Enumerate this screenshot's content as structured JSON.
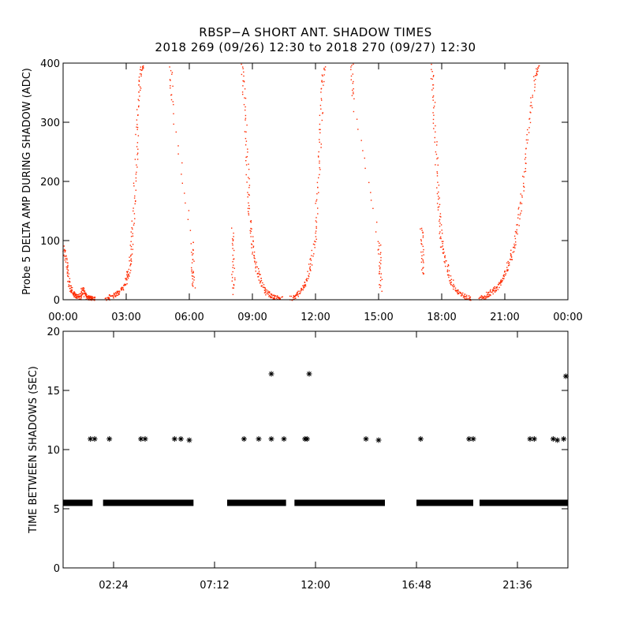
{
  "header": {
    "title": "RBSP−A SHORT ANT. SHADOW TIMES",
    "subtitle": "2018 269 (09/26) 12:30 to 2018 270 (09/27) 12:30"
  },
  "chart_data": [
    {
      "type": "scatter",
      "ylabel": "Probe 5 DELTA AMP DURING SHADOW (ADC)",
      "x_unit": "hours",
      "xlim": [
        0,
        24
      ],
      "ylim": [
        0,
        400
      ],
      "x_ticks": [
        0,
        3,
        6,
        9,
        12,
        15,
        18,
        21,
        24
      ],
      "x_tick_labels": [
        "00:00",
        "03:00",
        "06:00",
        "09:00",
        "12:00",
        "15:00",
        "18:00",
        "21:00",
        "00:00"
      ],
      "y_ticks": [
        0,
        100,
        200,
        300,
        400
      ],
      "y_tick_labels": [
        "0",
        "100",
        "200",
        "300",
        "400"
      ],
      "grid": false,
      "point_color": "#ff2a00",
      "series": [
        {
          "x": [
            0.0,
            0.1,
            0.2,
            0.3,
            0.4,
            0.5,
            0.6,
            0.7,
            0.8,
            0.9,
            1.0,
            1.1,
            1.2,
            1.3,
            1.4,
            1.5
          ],
          "y": [
            90,
            70,
            45,
            25,
            15,
            10,
            8,
            6,
            5,
            20,
            12,
            6,
            4,
            3,
            2,
            1
          ]
        },
        {
          "x": [
            2.0,
            2.2,
            2.4,
            2.6,
            2.8,
            3.0,
            3.1,
            3.2,
            3.3,
            3.4,
            3.5,
            3.6,
            3.7,
            3.8
          ],
          "y": [
            3,
            5,
            8,
            12,
            20,
            35,
            50,
            80,
            130,
            200,
            280,
            350,
            390,
            400
          ]
        },
        {
          "x": [
            5.1,
            5.15,
            6.1,
            6.15,
            6.2
          ],
          "y": [
            400,
            330,
            100,
            50,
            20
          ]
        },
        {
          "x": [
            8.0,
            8.05,
            8.1
          ],
          "y": [
            120,
            60,
            10
          ]
        },
        {
          "x": [
            8.5,
            8.6,
            8.7,
            8.8,
            8.9,
            9.0,
            9.2,
            9.4,
            9.6,
            9.8,
            10.0,
            10.2,
            10.4
          ],
          "y": [
            400,
            340,
            250,
            180,
            120,
            80,
            50,
            30,
            15,
            8,
            5,
            3,
            2
          ]
        },
        {
          "x": [
            10.8,
            11.0,
            11.2,
            11.4,
            11.6,
            11.8,
            12.0,
            12.1,
            12.2,
            12.3,
            12.4
          ],
          "y": [
            3,
            6,
            12,
            22,
            40,
            70,
            120,
            200,
            280,
            360,
            400
          ]
        },
        {
          "x": [
            13.7,
            13.75,
            15.0,
            15.05,
            15.1
          ],
          "y": [
            400,
            340,
            100,
            55,
            15
          ]
        },
        {
          "x": [
            17.0,
            17.05,
            17.1
          ],
          "y": [
            125,
            80,
            40
          ]
        },
        {
          "x": [
            17.5,
            17.6,
            17.7,
            17.8,
            17.9,
            18.0,
            18.2,
            18.4,
            18.6,
            18.8,
            19.0,
            19.2,
            19.4
          ],
          "y": [
            400,
            340,
            260,
            180,
            130,
            90,
            60,
            35,
            20,
            12,
            7,
            4,
            2
          ]
        },
        {
          "x": [
            19.8,
            20.0,
            20.2,
            20.4,
            20.6,
            20.8,
            21.0,
            21.2,
            21.4,
            21.6,
            21.8,
            22.0,
            22.2,
            22.4,
            22.6
          ],
          "y": [
            3,
            6,
            10,
            15,
            22,
            32,
            45,
            65,
            90,
            130,
            180,
            250,
            320,
            380,
            400
          ]
        }
      ]
    },
    {
      "type": "scatter",
      "ylabel": "TIME BETWEEN SHADOWS (SEC)",
      "x_unit": "hours",
      "xlim": [
        0,
        24
      ],
      "ylim": [
        0,
        20
      ],
      "x_ticks": [
        2.4,
        7.2,
        12.0,
        16.8,
        21.6
      ],
      "x_tick_labels": [
        "02:24",
        "07:12",
        "12:00",
        "16:48",
        "21:36"
      ],
      "y_ticks": [
        0,
        5,
        10,
        15,
        20
      ],
      "y_tick_labels": [
        "0",
        "5",
        "10",
        "15",
        "20"
      ],
      "grid": false,
      "point_color": "#000000",
      "marker": "asterisk",
      "baseline_value": 5.5,
      "baseline_ranges": [
        [
          0.0,
          1.4
        ],
        [
          1.9,
          6.2
        ],
        [
          7.8,
          10.6
        ],
        [
          11.0,
          15.3
        ],
        [
          16.8,
          19.5
        ],
        [
          19.8,
          24.0
        ]
      ],
      "points": {
        "x": [
          1.3,
          1.5,
          2.2,
          3.7,
          3.9,
          5.3,
          5.6,
          6.0,
          8.6,
          9.3,
          9.9,
          9.9,
          10.5,
          11.5,
          11.6,
          11.7,
          14.4,
          15.0,
          17.0,
          19.3,
          19.5,
          22.2,
          22.4,
          23.3,
          23.5,
          23.8,
          23.9
        ],
        "y": [
          10.9,
          10.9,
          10.9,
          10.9,
          10.9,
          10.9,
          10.9,
          10.8,
          10.9,
          10.9,
          10.9,
          16.4,
          10.9,
          10.9,
          10.9,
          16.4,
          10.9,
          10.8,
          10.9,
          10.9,
          10.9,
          10.9,
          10.9,
          10.9,
          10.8,
          10.9,
          16.2
        ]
      }
    }
  ]
}
